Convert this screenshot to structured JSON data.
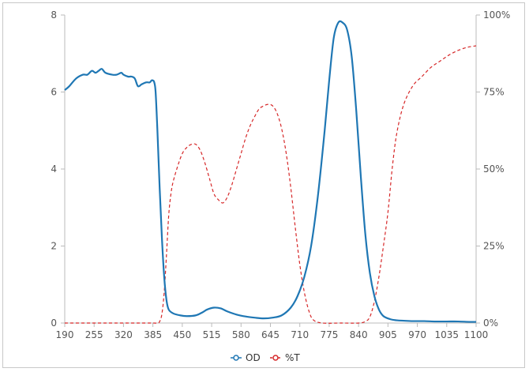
{
  "chart_data": {
    "type": "line",
    "title": "",
    "xlabel": "",
    "ylabel_left": "",
    "ylabel_right": "",
    "xlim": [
      190,
      1100
    ],
    "ylim_left": [
      0,
      8
    ],
    "ylim_right": [
      0,
      100
    ],
    "x_ticks": [
      "190",
      "255",
      "320",
      "385",
      "450",
      "515",
      "580",
      "645",
      "710",
      "775",
      "840",
      "905",
      "970",
      "1035",
      "1100"
    ],
    "y_left_ticks": [
      "0",
      "2",
      "4",
      "6",
      "8"
    ],
    "y_right_ticks": [
      "0%",
      "25%",
      "50%",
      "75%",
      "100%"
    ],
    "grid": false,
    "legend_position": "bottom-center",
    "series": [
      {
        "name": "OD",
        "axis": "left",
        "color": "#1f77b4",
        "style": "solid",
        "x": [
          190,
          200,
          215,
          230,
          240,
          250,
          258,
          265,
          272,
          280,
          295,
          305,
          315,
          320,
          330,
          338,
          345,
          352,
          360,
          370,
          378,
          382,
          385,
          388,
          391,
          395,
          400,
          405,
          410,
          415,
          420,
          430,
          445,
          460,
          480,
          495,
          505,
          520,
          535,
          550,
          570,
          590,
          610,
          630,
          650,
          670,
          690,
          705,
          720,
          735,
          750,
          765,
          775,
          785,
          795,
          805,
          815,
          825,
          835,
          845,
          855,
          865,
          875,
          885,
          895,
          910,
          925,
          940,
          960,
          985,
          1010,
          1035,
          1060,
          1085,
          1100
        ],
        "y": [
          6.05,
          6.15,
          6.35,
          6.45,
          6.45,
          6.55,
          6.5,
          6.55,
          6.6,
          6.5,
          6.45,
          6.45,
          6.5,
          6.45,
          6.4,
          6.4,
          6.35,
          6.15,
          6.2,
          6.25,
          6.25,
          6.3,
          6.3,
          6.25,
          6.0,
          5.0,
          3.5,
          2.2,
          1.2,
          0.6,
          0.35,
          0.25,
          0.2,
          0.18,
          0.2,
          0.28,
          0.35,
          0.4,
          0.38,
          0.3,
          0.22,
          0.17,
          0.14,
          0.12,
          0.14,
          0.2,
          0.4,
          0.7,
          1.2,
          2.0,
          3.3,
          5.0,
          6.3,
          7.4,
          7.8,
          7.8,
          7.6,
          6.9,
          5.5,
          3.8,
          2.3,
          1.3,
          0.7,
          0.35,
          0.18,
          0.1,
          0.07,
          0.06,
          0.05,
          0.05,
          0.04,
          0.04,
          0.04,
          0.03,
          0.03
        ]
      },
      {
        "name": "%T",
        "axis": "right",
        "color": "#d62728",
        "style": "dashed",
        "x": [
          190,
          250,
          300,
          350,
          385,
          395,
          400,
          405,
          410,
          415,
          420,
          425,
          430,
          440,
          450,
          460,
          470,
          480,
          490,
          500,
          510,
          520,
          530,
          540,
          550,
          560,
          570,
          580,
          590,
          600,
          610,
          620,
          630,
          640,
          650,
          660,
          670,
          680,
          690,
          700,
          710,
          720,
          730,
          740,
          760,
          800,
          840,
          855,
          865,
          875,
          885,
          895,
          905,
          915,
          925,
          940,
          960,
          980,
          1000,
          1020,
          1040,
          1060,
          1080,
          1100
        ],
        "y": [
          0,
          0,
          0,
          0,
          0,
          0,
          0.5,
          3,
          10,
          22,
          35,
          42,
          46,
          51,
          55,
          57,
          58,
          58,
          56,
          52,
          47,
          42,
          40,
          39,
          41,
          45,
          50,
          55,
          60,
          64,
          67,
          69.5,
          70.5,
          71,
          70.5,
          68,
          63,
          55,
          44,
          31,
          19,
          10,
          4,
          1,
          0,
          0,
          0,
          0.5,
          2,
          7,
          15,
          25,
          36,
          51,
          62,
          71,
          77,
          80,
          83,
          85,
          87,
          88.5,
          89.5,
          90
        ]
      }
    ]
  },
  "legend": {
    "items": [
      {
        "label": "OD",
        "color": "#1f77b4"
      },
      {
        "label": "%T",
        "color": "#d62728"
      }
    ]
  },
  "colors": {
    "axis": "#bbbbbb",
    "tick_text": "#555555"
  }
}
